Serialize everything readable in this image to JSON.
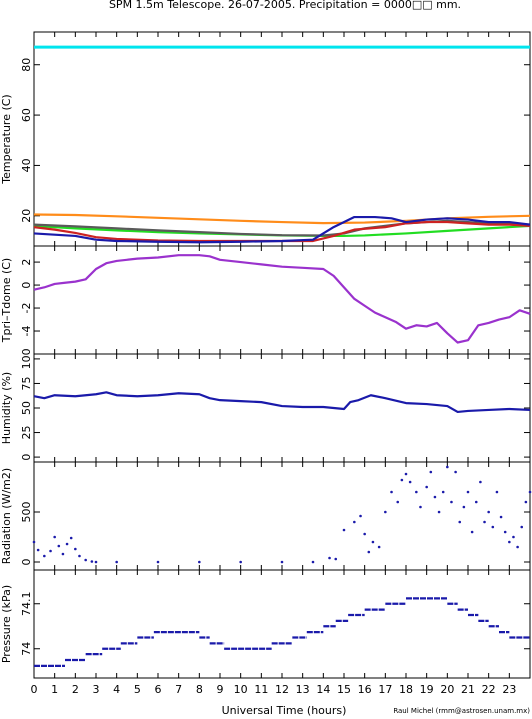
{
  "figure": {
    "title": "SPM 1.5m Telescope. 26-07-2005. Precipitation = 0000□□ mm.",
    "xlabel": "Universal Time (hours)",
    "credit": "Raul Michel (rmm@astrosen.unam.mx)"
  },
  "chart_data": [
    {
      "type": "line",
      "panel": "temperature",
      "ylabel": "Temperature (C)",
      "ylim": [
        8,
        93
      ],
      "xlim": [
        0,
        24
      ],
      "yticks": [
        20,
        40,
        60,
        80
      ],
      "series": [
        {
          "color": "#00e5ee",
          "style": "line",
          "x": [
            0,
            24
          ],
          "y": [
            87,
            87
          ]
        },
        {
          "color": "#ff8c1a",
          "style": "line",
          "x": [
            0,
            2,
            4,
            6,
            8,
            10,
            12,
            14,
            16,
            18,
            20,
            22,
            24
          ],
          "y": [
            20.5,
            20.3,
            19.8,
            19.2,
            18.6,
            18.0,
            17.5,
            17.1,
            17.3,
            18.0,
            19.0,
            19.6,
            20.0
          ]
        },
        {
          "color": "#22dd22",
          "style": "line",
          "x": [
            0,
            2,
            4,
            6,
            8,
            10,
            12,
            14,
            15,
            16,
            18,
            20,
            22,
            24
          ],
          "y": [
            16.0,
            15.0,
            14.2,
            13.5,
            13.0,
            12.6,
            12.2,
            12.0,
            12.0,
            12.2,
            13.0,
            14.0,
            15.0,
            16.0
          ]
        },
        {
          "color": "#5a5a5a",
          "style": "line",
          "x": [
            0,
            2,
            4,
            6,
            8,
            10,
            12,
            14,
            15,
            16,
            18,
            20,
            22,
            24
          ],
          "y": [
            16.5,
            15.8,
            15.0,
            14.2,
            13.5,
            12.8,
            12.3,
            12.2,
            13.0,
            15.0,
            17.0,
            18.0,
            17.0,
            16.5
          ]
        },
        {
          "color": "#cc2222",
          "style": "line",
          "x": [
            0,
            1,
            2,
            3,
            4,
            6,
            8,
            10,
            12,
            13.5,
            14.5,
            15.5,
            17,
            18,
            19,
            20,
            21,
            22,
            23,
            24
          ],
          "y": [
            15.5,
            14.5,
            13.2,
            11.5,
            10.8,
            10.2,
            10.0,
            10.0,
            10.0,
            10.0,
            12.0,
            14.5,
            15.5,
            17.0,
            17.5,
            17.5,
            17.0,
            16.5,
            16.5,
            16.0
          ]
        },
        {
          "color": "#1a1aaa",
          "style": "line",
          "x": [
            0,
            1,
            2,
            3,
            4,
            6,
            8,
            10,
            12,
            13.5,
            14.5,
            15.5,
            16.5,
            17.3,
            18,
            19,
            20,
            21,
            22,
            23,
            24
          ],
          "y": [
            13.0,
            12.5,
            12.0,
            10.5,
            10.0,
            9.7,
            9.5,
            9.7,
            10.0,
            10.5,
            15.5,
            19.5,
            19.5,
            19.0,
            17.5,
            18.5,
            19.0,
            18.5,
            17.5,
            17.5,
            16.5
          ]
        }
      ]
    },
    {
      "type": "line",
      "panel": "tdiff",
      "ylabel": "Tpri–Tdome (C)",
      "ylim": [
        -6,
        3.4
      ],
      "xlim": [
        0,
        24
      ],
      "yticks": [
        -4,
        -2,
        0,
        2
      ],
      "series": [
        {
          "color": "#9a32cd",
          "style": "line",
          "x": [
            0,
            0.5,
            1,
            1.5,
            2,
            2.5,
            3,
            3.5,
            4,
            5,
            6,
            7,
            8,
            8.5,
            9,
            10,
            11,
            12,
            13,
            14,
            14.5,
            15,
            15.5,
            16,
            16.5,
            17,
            17.5,
            18,
            18.5,
            19,
            19.5,
            20,
            20.5,
            21,
            21.5,
            22,
            22.5,
            23,
            23.5,
            24
          ],
          "y": [
            -0.4,
            -0.2,
            0.1,
            0.2,
            0.3,
            0.5,
            1.4,
            1.9,
            2.1,
            2.3,
            2.4,
            2.6,
            2.6,
            2.5,
            2.2,
            2.0,
            1.8,
            1.6,
            1.5,
            1.4,
            0.8,
            -0.2,
            -1.2,
            -1.8,
            -2.4,
            -2.8,
            -3.2,
            -3.8,
            -3.5,
            -3.6,
            -3.3,
            -4.2,
            -5.0,
            -4.8,
            -3.5,
            -3.3,
            -3.0,
            -2.8,
            -2.2,
            -2.5
          ]
        }
      ]
    },
    {
      "type": "line",
      "panel": "humidity",
      "ylabel": "Humidity (%)",
      "ylim": [
        -5,
        105
      ],
      "xlim": [
        0,
        24
      ],
      "yticks": [
        0,
        25,
        50,
        75,
        100
      ],
      "series": [
        {
          "color": "#1a1aaa",
          "style": "line",
          "x": [
            0,
            0.5,
            1,
            2,
            3,
            3.5,
            4,
            5,
            6,
            7,
            8,
            8.5,
            9,
            10,
            11,
            12,
            13,
            14,
            14.5,
            15,
            15.3,
            15.7,
            16.3,
            17,
            18,
            19,
            20,
            20.5,
            21,
            22,
            23,
            24
          ],
          "y": [
            62,
            60,
            63,
            62,
            64,
            66,
            63,
            62,
            63,
            65,
            64,
            60,
            58,
            57,
            56,
            52,
            51,
            51,
            50,
            49,
            56,
            58,
            63,
            60,
            55,
            54,
            52,
            46,
            47,
            48,
            49,
            48
          ]
        }
      ]
    },
    {
      "type": "scatter",
      "panel": "radiation",
      "ylabel": "Radiation (W/m2)",
      "ylim": [
        -80,
        1000
      ],
      "xlim": [
        0,
        24
      ],
      "yticks": [
        0,
        500
      ],
      "series": [
        {
          "color": "#1a1aaa",
          "style": "dots",
          "x": [
            0,
            0.2,
            0.5,
            0.8,
            1.0,
            1.2,
            1.4,
            1.6,
            1.8,
            2.0,
            2.2,
            2.5,
            2.8,
            3.0,
            4,
            6,
            8,
            10,
            12,
            13.5,
            14.3,
            14.6,
            15.0,
            15.5,
            15.8,
            16.0,
            16.2,
            16.4,
            16.7,
            17.0,
            17.3,
            17.6,
            17.8,
            18.0,
            18.2,
            18.5,
            18.7,
            19.0,
            19.2,
            19.4,
            19.6,
            19.8,
            20.0,
            20.2,
            20.4,
            20.6,
            20.8,
            21.0,
            21.2,
            21.4,
            21.6,
            21.8,
            22.0,
            22.2,
            22.4,
            22.6,
            22.8,
            23.0,
            23.2,
            23.4,
            23.6,
            23.8,
            24.0
          ],
          "y": [
            200,
            120,
            60,
            110,
            250,
            160,
            80,
            180,
            240,
            130,
            60,
            20,
            5,
            0,
            0,
            0,
            0,
            0,
            0,
            0,
            40,
            30,
            320,
            400,
            460,
            280,
            100,
            200,
            150,
            500,
            700,
            600,
            820,
            880,
            800,
            700,
            550,
            750,
            900,
            650,
            500,
            700,
            950,
            600,
            900,
            400,
            550,
            700,
            300,
            600,
            800,
            400,
            500,
            350,
            700,
            450,
            300,
            200,
            250,
            150,
            350,
            600,
            700
          ]
        }
      ]
    },
    {
      "type": "line",
      "panel": "pressure",
      "ylabel": "Pressure (kPa)",
      "ylim": [
        73.935,
        74.175
      ],
      "xlim": [
        0,
        24
      ],
      "yticks": [
        74.0,
        74.1
      ],
      "ytick_labels": [
        "74",
        "74.1"
      ],
      "xticks": [
        0,
        1,
        2,
        3,
        4,
        5,
        6,
        7,
        8,
        9,
        10,
        11,
        12,
        13,
        14,
        15,
        16,
        17,
        18,
        19,
        20,
        21,
        22,
        23
      ],
      "series": [
        {
          "color": "#1a1aaa",
          "style": "step",
          "x": [
            0,
            1.5,
            2.5,
            3.3,
            4.2,
            5.0,
            5.8,
            8.0,
            8.5,
            9.2,
            11.5,
            12.5,
            13.2,
            14.0,
            14.6,
            15.2,
            16.0,
            17.0,
            18.0,
            20.0,
            20.5,
            21.0,
            21.5,
            22.0,
            22.5,
            23.0,
            24.0
          ],
          "y": [
            73.962,
            73.975,
            73.988,
            74.0,
            74.012,
            74.025,
            74.037,
            74.025,
            74.012,
            74.0,
            74.012,
            74.025,
            74.037,
            74.05,
            74.062,
            74.075,
            74.087,
            74.1,
            74.112,
            74.1,
            74.087,
            74.075,
            74.062,
            74.05,
            74.037,
            74.025,
            74.012
          ]
        }
      ]
    }
  ]
}
